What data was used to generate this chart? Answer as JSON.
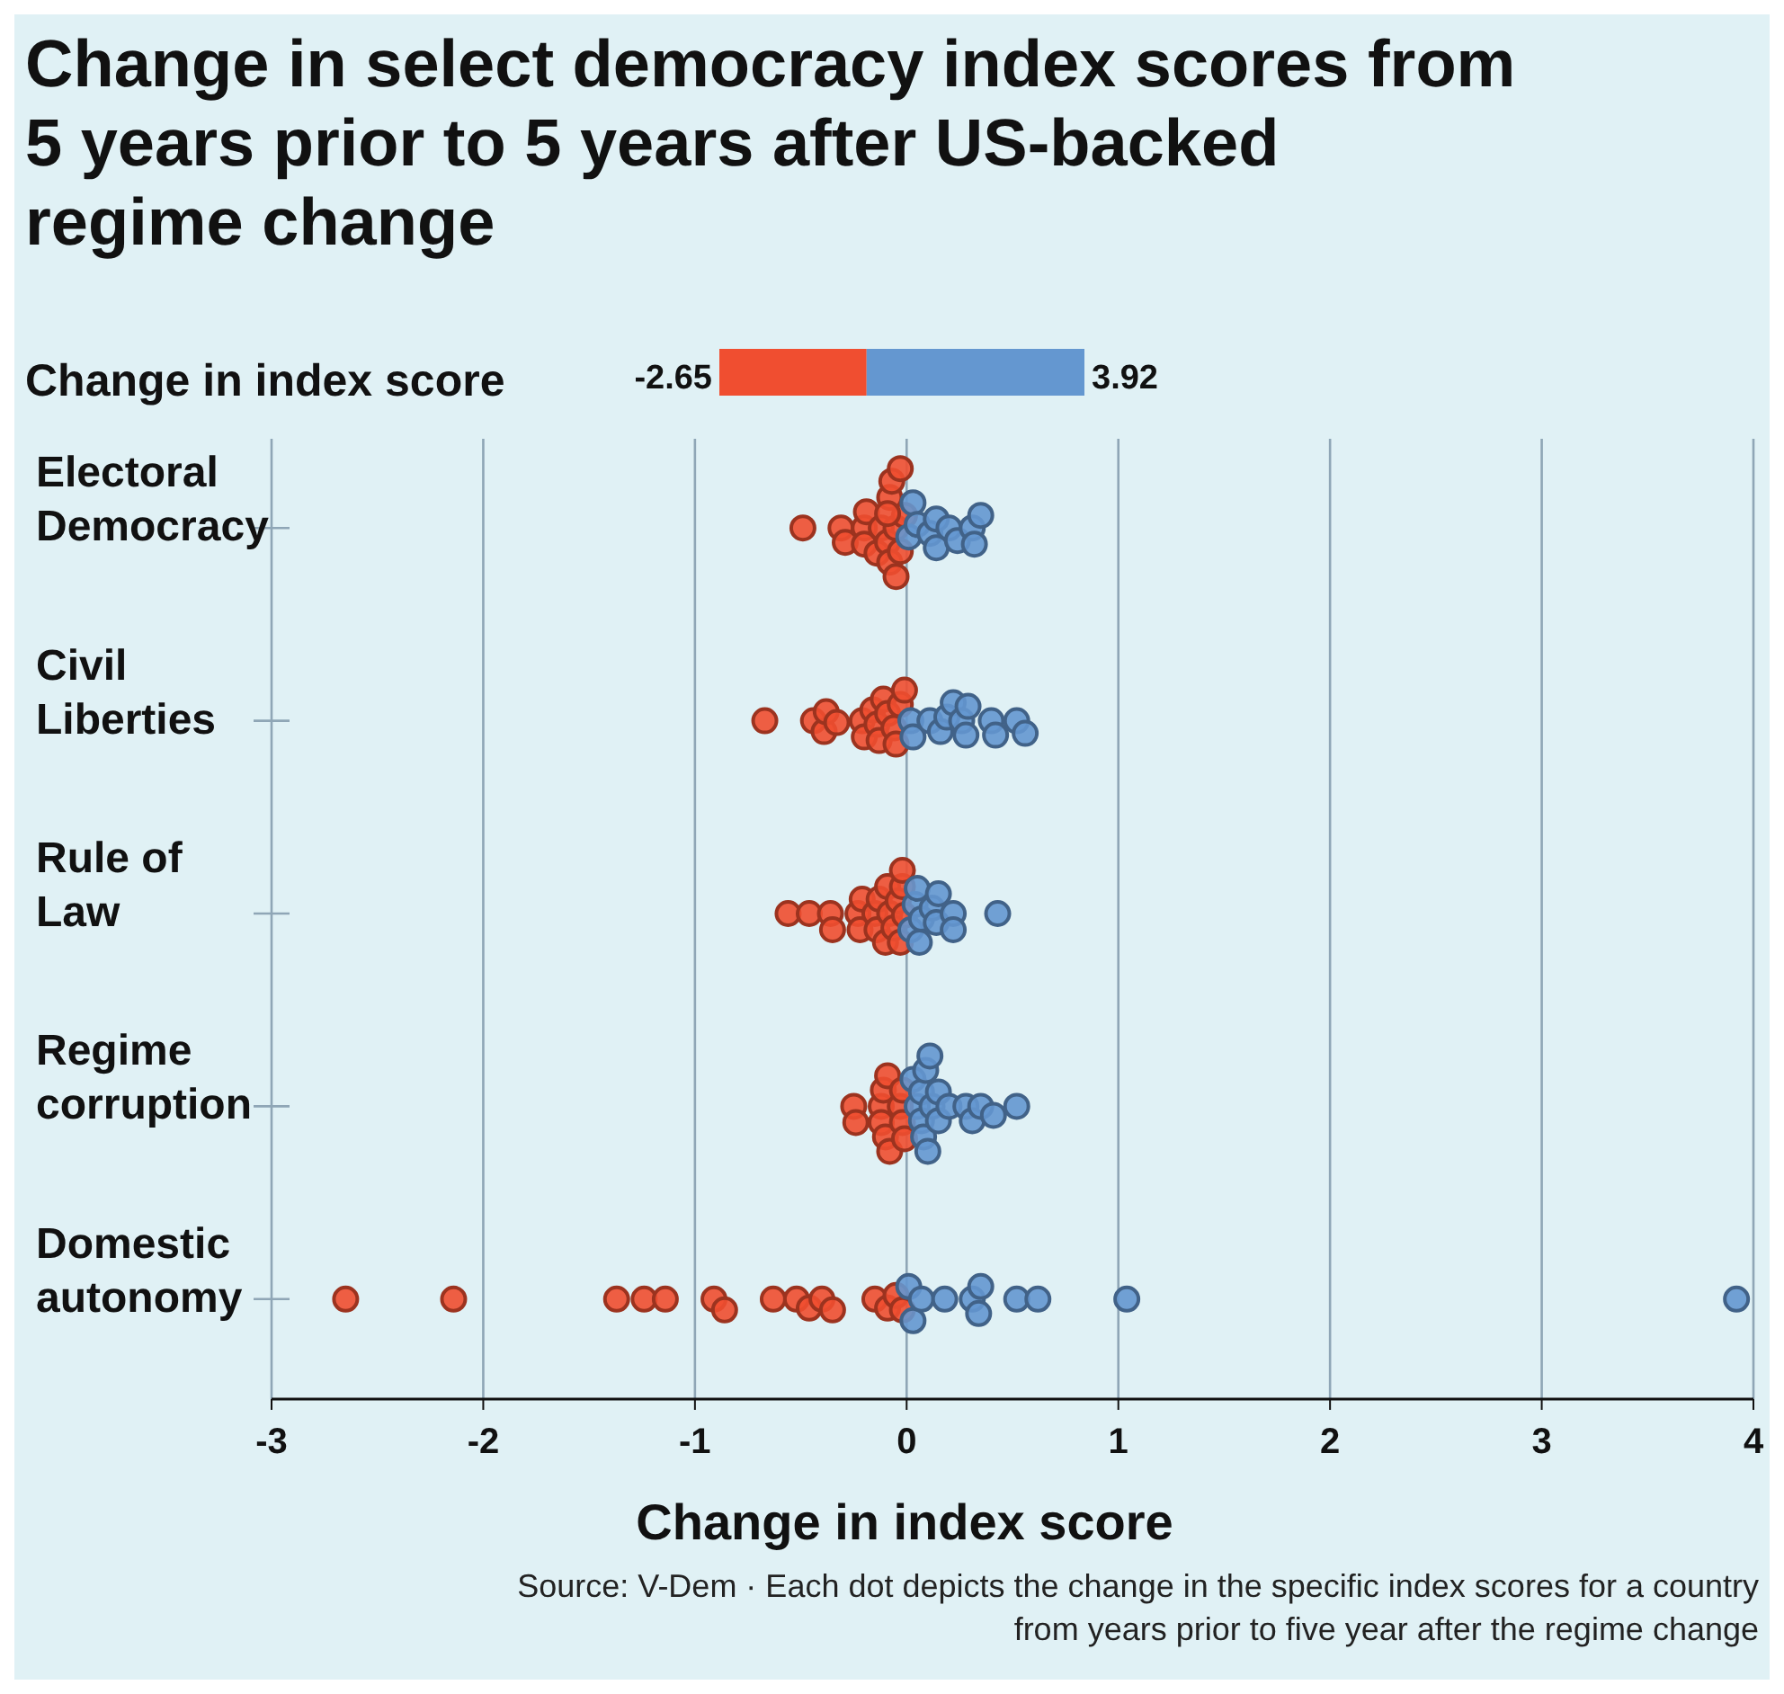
{
  "chart_data": {
    "type": "scatter",
    "orientation": "horizontal",
    "title": "Change in select democracy index scores from 5 years prior to 5 years after US-backed regime change",
    "xlabel": "Change in index score",
    "clabel": "Change in index score",
    "clim": [
      -2.65,
      3.92
    ],
    "cticks": [
      -2.65,
      3.92
    ],
    "categories": [
      "Electoral Democracy",
      "Civil Liberties",
      "Rule of Law",
      "Regime corruption",
      "Domestic autonomy"
    ],
    "xlim": [
      -3,
      4
    ],
    "xticks": [
      -3,
      -2,
      -1,
      0,
      1,
      2,
      3,
      4
    ],
    "grid": "x",
    "marker": "circle",
    "series": [
      {
        "color": "#f04e30",
        "x": [
          "Electoral Democracy",
          "Electoral Democracy",
          "Electoral Democracy",
          "Electoral Democracy",
          "Electoral Democracy",
          "Electoral Democracy",
          "Electoral Democracy",
          "Electoral Democracy",
          "Electoral Democracy",
          "Electoral Democracy",
          "Electoral Democracy",
          "Electoral Democracy",
          "Electoral Democracy",
          "Electoral Democracy",
          "Electoral Democracy",
          "Electoral Democracy",
          "Electoral Democracy",
          "Electoral Democracy",
          "Civil Liberties",
          "Civil Liberties",
          "Civil Liberties",
          "Civil Liberties",
          "Civil Liberties",
          "Civil Liberties",
          "Civil Liberties",
          "Civil Liberties",
          "Civil Liberties",
          "Civil Liberties",
          "Civil Liberties",
          "Civil Liberties",
          "Civil Liberties",
          "Civil Liberties",
          "Civil Liberties",
          "Civil Liberties",
          "Rule of Law",
          "Rule of Law",
          "Rule of Law",
          "Rule of Law",
          "Rule of Law",
          "Rule of Law",
          "Rule of Law",
          "Rule of Law",
          "Rule of Law",
          "Rule of Law",
          "Rule of Law",
          "Rule of Law",
          "Rule of Law",
          "Rule of Law",
          "Rule of Law",
          "Rule of Law",
          "Rule of Law",
          "Rule of Law",
          "Rule of Law",
          "Regime corruption",
          "Regime corruption",
          "Regime corruption",
          "Regime corruption",
          "Regime corruption",
          "Regime corruption",
          "Regime corruption",
          "Regime corruption",
          "Regime corruption",
          "Regime corruption",
          "Regime corruption",
          "Regime corruption",
          "Domestic autonomy",
          "Domestic autonomy",
          "Domestic autonomy",
          "Domestic autonomy",
          "Domestic autonomy",
          "Domestic autonomy",
          "Domestic autonomy",
          "Domestic autonomy",
          "Domestic autonomy",
          "Domestic autonomy",
          "Domestic autonomy",
          "Domestic autonomy",
          "Domestic autonomy",
          "Domestic autonomy",
          "Domestic autonomy",
          "Domestic autonomy"
        ],
        "values": [
          -0.49,
          -0.31,
          -0.29,
          -0.2,
          -0.19,
          -0.2,
          -0.14,
          -0.12,
          -0.09,
          -0.08,
          -0.08,
          -0.07,
          -0.05,
          -0.05,
          -0.03,
          -0.03,
          -0.01,
          -0.09,
          -0.67,
          -0.44,
          -0.39,
          -0.38,
          -0.33,
          -0.21,
          -0.2,
          -0.16,
          -0.14,
          -0.13,
          -0.11,
          -0.09,
          -0.06,
          -0.05,
          -0.03,
          -0.01,
          -0.56,
          -0.46,
          -0.36,
          -0.35,
          -0.23,
          -0.22,
          -0.21,
          -0.15,
          -0.14,
          -0.13,
          -0.1,
          -0.09,
          -0.08,
          -0.06,
          -0.04,
          -0.03,
          -0.02,
          -0.02,
          -0.01,
          -0.25,
          -0.24,
          -0.12,
          -0.12,
          -0.11,
          -0.1,
          -0.09,
          -0.08,
          -0.03,
          -0.02,
          -0.02,
          -0.01,
          -2.65,
          -2.14,
          -1.37,
          -1.24,
          -1.14,
          -0.91,
          -0.86,
          -0.63,
          -0.52,
          -0.46,
          -0.4,
          -0.35,
          -0.15,
          -0.09,
          -0.05,
          -0.02
        ]
      },
      {
        "color": "#6497d0",
        "x": [
          "Electoral Democracy",
          "Electoral Democracy",
          "Electoral Democracy",
          "Electoral Democracy",
          "Electoral Democracy",
          "Electoral Democracy",
          "Electoral Democracy",
          "Electoral Democracy",
          "Electoral Democracy",
          "Electoral Democracy",
          "Electoral Democracy",
          "Civil Liberties",
          "Civil Liberties",
          "Civil Liberties",
          "Civil Liberties",
          "Civil Liberties",
          "Civil Liberties",
          "Civil Liberties",
          "Civil Liberties",
          "Civil Liberties",
          "Civil Liberties",
          "Civil Liberties",
          "Civil Liberties",
          "Civil Liberties",
          "Rule of Law",
          "Rule of Law",
          "Rule of Law",
          "Rule of Law",
          "Rule of Law",
          "Rule of Law",
          "Rule of Law",
          "Rule of Law",
          "Rule of Law",
          "Rule of Law",
          "Rule of Law",
          "Regime corruption",
          "Regime corruption",
          "Regime corruption",
          "Regime corruption",
          "Regime corruption",
          "Regime corruption",
          "Regime corruption",
          "Regime corruption",
          "Regime corruption",
          "Regime corruption",
          "Regime corruption",
          "Regime corruption",
          "Regime corruption",
          "Regime corruption",
          "Regime corruption",
          "Regime corruption",
          "Regime corruption",
          "Domestic autonomy",
          "Domestic autonomy",
          "Domestic autonomy",
          "Domestic autonomy",
          "Domestic autonomy",
          "Domestic autonomy",
          "Domestic autonomy",
          "Domestic autonomy",
          "Domestic autonomy",
          "Domestic autonomy",
          "Domestic autonomy"
        ],
        "values": [
          0.01,
          0.03,
          0.05,
          0.11,
          0.14,
          0.14,
          0.2,
          0.24,
          0.31,
          0.32,
          0.35,
          0.02,
          0.03,
          0.11,
          0.16,
          0.19,
          0.22,
          0.26,
          0.28,
          0.29,
          0.4,
          0.42,
          0.52,
          0.56,
          0.02,
          0.04,
          0.05,
          0.06,
          0.07,
          0.12,
          0.14,
          0.15,
          0.22,
          0.22,
          0.43,
          0.03,
          0.05,
          0.07,
          0.07,
          0.08,
          0.09,
          0.1,
          0.11,
          0.12,
          0.15,
          0.15,
          0.2,
          0.28,
          0.31,
          0.35,
          0.41,
          0.52,
          0.01,
          0.03,
          0.07,
          0.18,
          0.31,
          0.34,
          0.35,
          0.52,
          0.62,
          1.04,
          3.92
        ]
      }
    ],
    "annotations": [
      "Source: V-Dem · Each dot depicts the change in the specific index scores for a country from years prior to five year after the regime change"
    ]
  }
}
